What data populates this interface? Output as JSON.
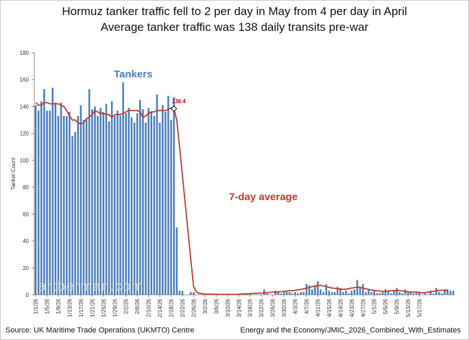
{
  "title": "Hormuz tanker traffic fell to 2 per day in May from 4 per day in April",
  "subtitle": "Average tanker traffic was 138 daily transits pre-war",
  "source_left": "Source: UK Maritime Trade Operations (UKMTO) Centre",
  "source_right": "Energy and the Economy/JMIC_2026_Combined_With_Estimates",
  "watermark": "artberman.com",
  "chart_data": {
    "type": "bar",
    "ylabel": "Tanker Count",
    "ylim": [
      0,
      180
    ],
    "yticks": [
      0,
      20,
      40,
      60,
      80,
      100,
      120,
      140,
      160,
      180
    ],
    "x_tick_labels": [
      "1/1/26",
      "1/5/26",
      "1/9/26",
      "1/13/26",
      "1/17/26",
      "1/21/26",
      "1/25/26",
      "1/29/26",
      "2/2/26",
      "2/6/26",
      "2/10/26",
      "2/14/26",
      "2/18/26",
      "2/22/26",
      "2/26/26",
      "3/2/26",
      "3/6/26",
      "3/10/26",
      "3/14/26",
      "3/18/26",
      "3/22/26",
      "3/26/26",
      "3/30/26",
      "4/3/26",
      "4/7/26",
      "4/11/26",
      "4/15/26",
      "4/19/26",
      "4/23/26",
      "4/27/26",
      "5/1/26",
      "5/5/26",
      "5/9/26",
      "5/13/26",
      "5/17/26"
    ],
    "series": [
      {
        "name": "Tankers",
        "color": "#4a7ebb",
        "values": [
          141,
          137,
          144,
          153,
          137,
          137,
          154,
          143,
          133,
          143,
          133,
          133,
          136,
          118,
          121,
          133,
          141,
          130,
          131,
          153,
          138,
          140,
          133,
          139,
          136,
          142,
          129,
          144,
          133,
          137,
          133,
          158,
          135,
          139,
          132,
          128,
          135,
          145,
          138,
          128,
          139,
          136,
          133,
          149,
          128,
          141,
          136,
          148,
          130,
          147,
          50,
          3,
          3,
          0,
          0,
          2,
          2,
          0,
          0,
          0,
          0,
          0,
          0,
          0,
          0,
          0,
          0,
          0,
          0,
          0,
          0,
          0,
          0,
          0,
          0,
          0,
          1,
          0,
          0,
          0,
          0,
          4,
          1,
          0,
          0,
          3,
          2,
          1,
          2,
          2,
          2,
          1,
          2,
          1,
          2,
          2,
          8,
          7,
          4,
          7,
          10,
          4,
          2,
          8,
          3,
          2,
          2,
          6,
          5,
          2,
          3,
          1,
          3,
          4,
          11,
          5,
          8,
          2,
          4,
          2,
          3,
          1,
          1,
          2,
          4,
          3,
          1,
          3,
          5,
          2,
          1,
          4,
          2,
          2,
          1,
          2,
          2,
          0,
          1,
          0,
          3,
          1,
          5,
          2,
          1,
          4,
          4,
          3,
          3
        ]
      },
      {
        "name": "7-day average",
        "color": "#c0392b",
        "values": [
          143,
          141,
          141,
          143,
          143,
          142,
          142,
          142,
          142,
          141,
          140,
          137,
          133,
          130,
          130,
          128,
          127,
          128,
          131,
          132,
          134,
          137,
          136,
          135,
          135,
          134,
          134,
          132,
          134,
          134,
          134,
          135,
          136,
          137,
          137,
          137,
          137,
          136,
          132,
          133,
          135,
          136,
          136,
          137,
          137,
          137,
          137,
          138,
          139,
          138.4,
          130,
          110,
          89,
          68,
          47,
          26,
          6,
          2,
          1,
          0.8,
          0.5,
          0.5,
          0.5,
          0.4,
          0.3,
          0.3,
          0.3,
          0.3,
          0.3,
          0.3,
          0.3,
          0.3,
          0.4,
          0.5,
          0.6,
          0.7,
          0.8,
          1,
          1,
          1.2,
          1.3,
          1.5,
          1.6,
          1.8,
          2,
          2,
          2.2,
          2.3,
          2.5,
          2.7,
          3,
          3,
          3.3,
          3.6,
          4,
          4.5,
          5,
          5.5,
          6,
          6.5,
          6.8,
          7,
          6.5,
          6,
          5.5,
          5,
          4.8,
          4.5,
          4.3,
          4,
          4.2,
          4.6,
          5,
          5.3,
          5.6,
          5.5,
          5,
          4.5,
          4,
          3.6,
          3.2,
          3,
          2.8,
          2.6,
          2.6,
          2.8,
          3,
          3.1,
          3.2,
          3.1,
          2.8,
          2.5,
          2.2,
          2,
          2,
          2,
          1.8,
          1.5,
          1.6,
          1.9,
          2.2,
          2.6,
          3,
          3.2,
          3.3,
          3.3,
          3.2
        ]
      }
    ],
    "annotations": [
      {
        "text": "138.4",
        "series": "7-day average",
        "index": 49,
        "color": "#c00000"
      }
    ],
    "series_labels": [
      {
        "text": "Tankers",
        "color": "#4a7ebb"
      },
      {
        "text": "7-day average",
        "color": "#c0392b"
      }
    ],
    "grid": false,
    "legend": "none"
  }
}
